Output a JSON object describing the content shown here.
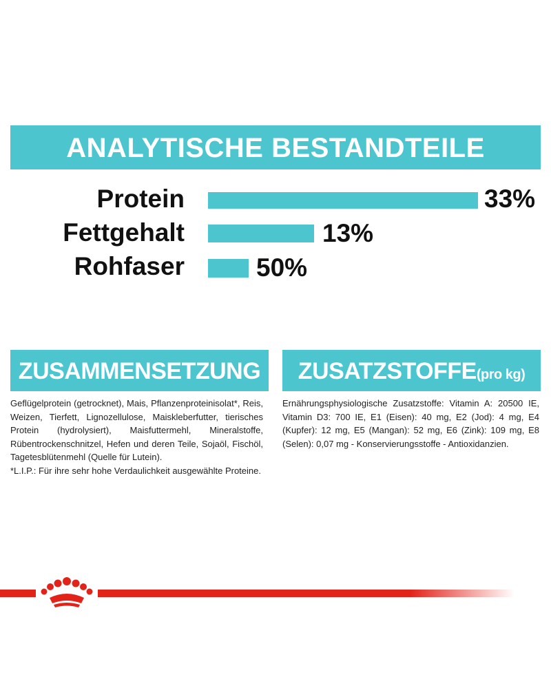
{
  "header": {
    "title": "ANALYTISCHE BESTANDTEILE"
  },
  "nutrients": [
    {
      "label": "Protein",
      "value": "33%"
    },
    {
      "label": "Fettgehalt",
      "value": "13%"
    },
    {
      "label": "Rohfaser",
      "value": "50%"
    }
  ],
  "sections": [
    {
      "title": "ZUSAMMENSETZUNG",
      "paragraphs": [
        "Geflügelprotein (getrocknet), Mais, Pflanzenproteinisolat*, Reis, Weizen, Tierfett, Lignozellulose, Maiskleberfutter, tierisches Protein (hydrolysiert), Maisfuttermehl, Mineralstoffe, Rübentrockenschnitzel, Hefen und deren Teile, Sojaöl, Fischöl, Tagetesblütenmehl (Quelle für Lutein).",
        "*L.I.P.: Für ihre sehr hohe Verdaulichkeit ausgewählte Proteine."
      ]
    },
    {
      "title": "ZUSATZSTOFFE",
      "title_suffix": "(pro kg)",
      "paragraphs": [
        "Ernährungsphysiologische Zusatzstoffe: Vitamin A: 20500 IE, Vitamin D3: 700 IE, E1 (Eisen): 40 mg, E2 (Jod): 4 mg, E4 (Kupfer): 12 mg, E5 (Mangan): 52 mg, E6 (Zink): 109 mg, E8 (Selen): 0,07 mg - Konservierungsstoffe - Antioxidanzien."
      ]
    }
  ]
}
